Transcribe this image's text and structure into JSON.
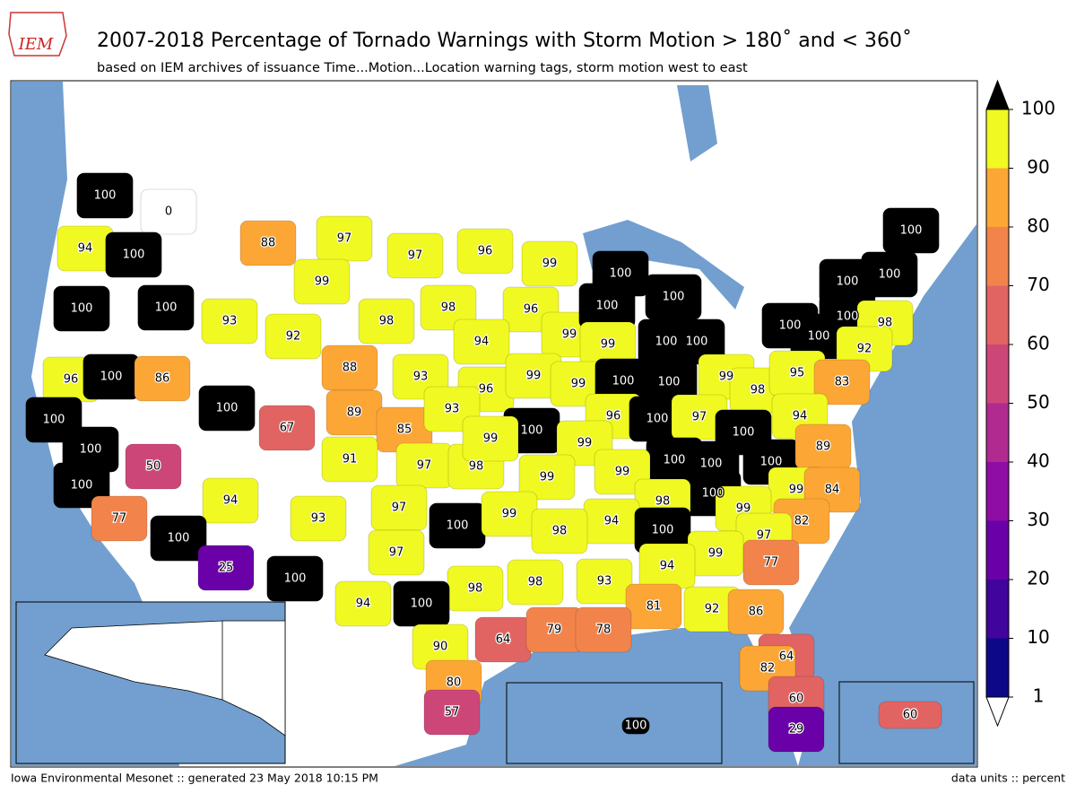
{
  "map_data": {
    "type": "choropleth",
    "logo": "IEM",
    "title": "2007-2018 Percentage of Tornado Warnings with Storm Motion > 180˚ and < 360˚",
    "subtitle": "based on IEM archives of issuance Time...Motion...Location warning tags, storm motion west to east",
    "footer_left": "Iowa Environmental Mesonet :: generated 23 May 2018 10:15 PM",
    "footer_right": "data units :: percent",
    "values": [
      100,
      0,
      94,
      100,
      88,
      97,
      97,
      96,
      99,
      100,
      100,
      100,
      100,
      100,
      100,
      99,
      93,
      92,
      98,
      98,
      96,
      99,
      100,
      100,
      100,
      100,
      100,
      98,
      100,
      100,
      99,
      94,
      88,
      93,
      96,
      99,
      99,
      100,
      100,
      99,
      98,
      95,
      92,
      83,
      96,
      100,
      86,
      100,
      67,
      89,
      85,
      93,
      100,
      96,
      100,
      97,
      100,
      94,
      100,
      100,
      50,
      91,
      97,
      98,
      99,
      99,
      100,
      100,
      100,
      89,
      100,
      99,
      99,
      100,
      99,
      84,
      94,
      93,
      97,
      100,
      99,
      98,
      99,
      82,
      77,
      100,
      94,
      98,
      100,
      97,
      99,
      97,
      25,
      100,
      94,
      77,
      93,
      98,
      98,
      100,
      94,
      81,
      92,
      86,
      90,
      64,
      79,
      78,
      64,
      82,
      80,
      60,
      57,
      29,
      100,
      60
    ],
    "colorbar": {
      "levels": [
        1,
        10,
        20,
        30,
        40,
        50,
        60,
        70,
        80,
        90,
        100
      ],
      "colors": [
        "#0d0887",
        "#41049d",
        "#6a00a8",
        "#8f0da4",
        "#b12a90",
        "#cc4778",
        "#e16462",
        "#f2844b",
        "#fca636",
        "#fcce25"
      ],
      "top_color": "#f0f921",
      "over": "#000000",
      "under": "#ffffff"
    }
  }
}
